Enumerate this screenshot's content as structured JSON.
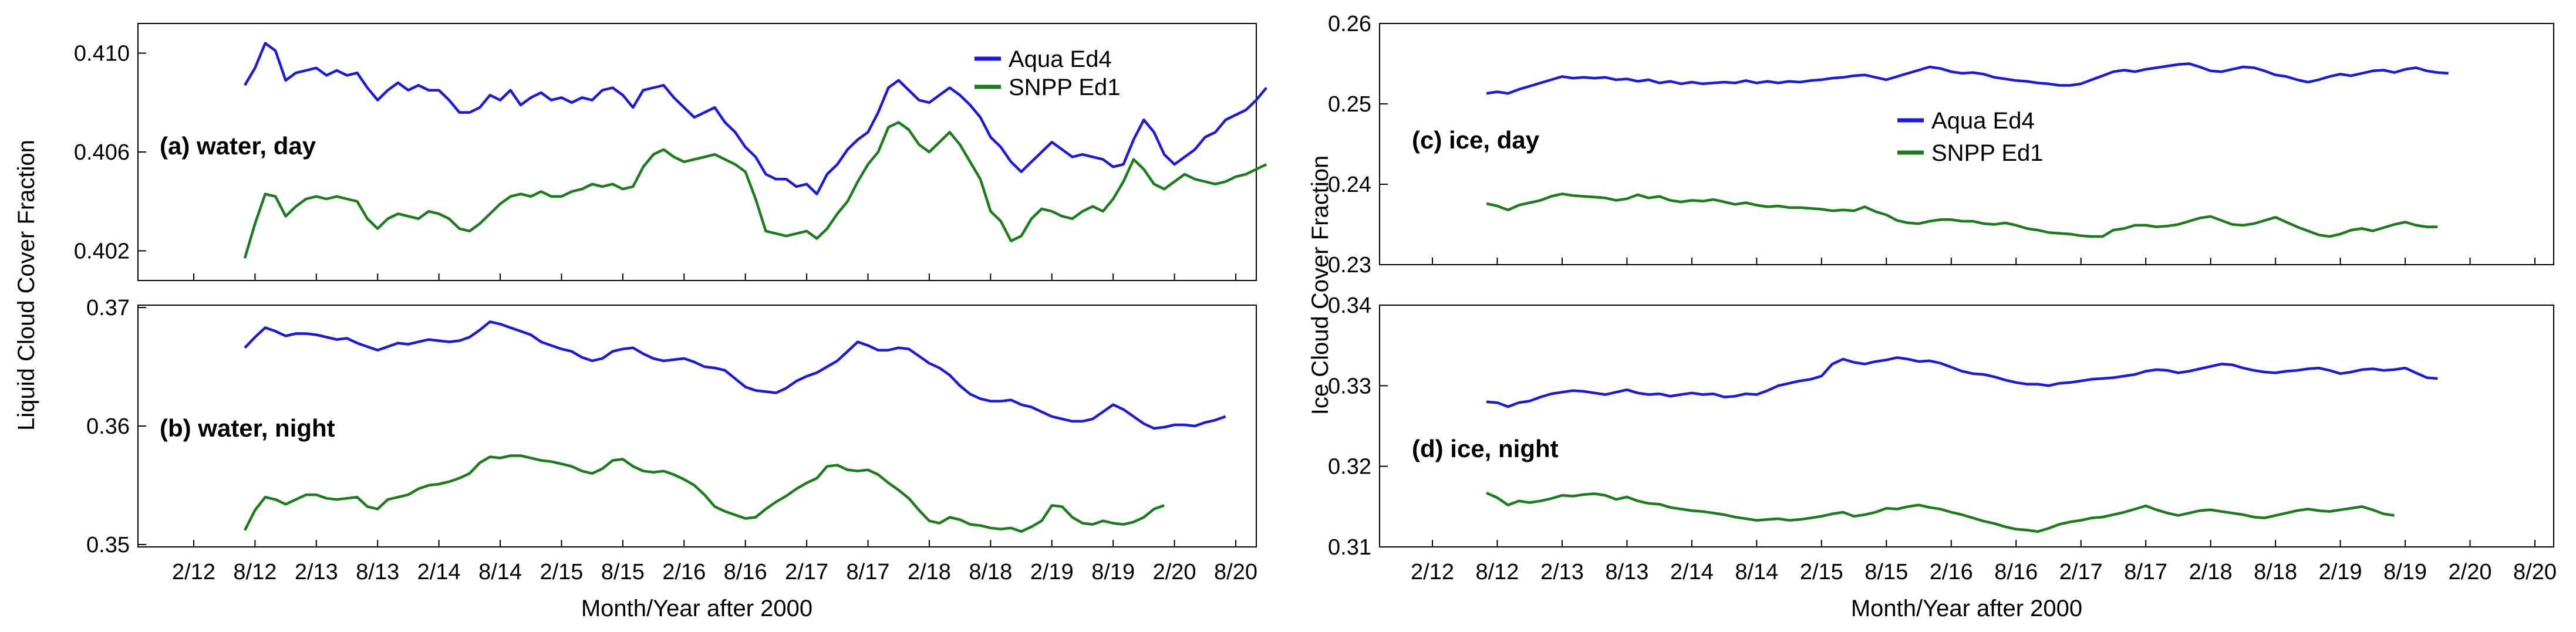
{
  "figure": {
    "left_ylabel": "Liquid Cloud Cover Fraction",
    "right_ylabel": "Ice Cloud Cover Fraction",
    "left_xlabel": "Month/Year after 2000",
    "right_xlabel": "Month/Year after 2000"
  },
  "legend": {
    "series_a": "Aqua Ed4",
    "series_b": "SNPP Ed1",
    "color_a": "#1a1adc",
    "color_b": "#1a7d1a"
  },
  "chart_data": [
    {
      "type": "line",
      "id": "a",
      "panel_label": "(a) water, day",
      "xlabel": "",
      "ylabel": "Liquid Cloud Cover Fraction",
      "x_ticks": [
        "2/12",
        "8/12",
        "2/13",
        "8/13",
        "2/14",
        "8/14",
        "2/15",
        "8/15",
        "2/16",
        "8/16",
        "2/17",
        "8/17",
        "2/18",
        "8/18",
        "2/19",
        "8/19",
        "2/20",
        "8/20"
      ],
      "y_ticks": [
        0.402,
        0.406,
        0.41
      ],
      "ylim": [
        0.4008,
        0.4112
      ],
      "x_range": [
        "2/12",
        "8/20"
      ],
      "legend": "top-right",
      "series": [
        {
          "name": "Aqua Ed4",
          "color": "#1a1adc",
          "x_start": "7/12",
          "values": [
            0.4087,
            0.4094,
            0.4104,
            0.4101,
            0.4089,
            0.4092,
            0.4093,
            0.4094,
            0.4091,
            0.4093,
            0.4091,
            0.4092,
            0.4086,
            0.4081,
            0.4085,
            0.4088,
            0.4085,
            0.4087,
            0.4085,
            0.4085,
            0.4081,
            0.4076,
            0.4076,
            0.4078,
            0.4083,
            0.4081,
            0.4085,
            0.4079,
            0.4082,
            0.4084,
            0.4081,
            0.4082,
            0.408,
            0.4082,
            0.4081,
            0.4085,
            0.4086,
            0.4083,
            0.4078,
            0.4085,
            0.4086,
            0.4087,
            0.4082,
            0.4078,
            0.4074,
            0.4076,
            0.4078,
            0.4072,
            0.4068,
            0.4062,
            0.4058,
            0.4051,
            0.4049,
            0.4049,
            0.4046,
            0.4047,
            0.4043,
            0.4051,
            0.4055,
            0.4061,
            0.4065,
            0.4068,
            0.4076,
            0.4086,
            0.4089,
            0.4085,
            0.4081,
            0.408,
            0.4083,
            0.4086,
            0.4083,
            0.4079,
            0.4074,
            0.4066,
            0.4062,
            0.4056,
            0.4052,
            0.4056,
            0.406,
            0.4064,
            0.4061,
            0.4058,
            0.4059,
            0.4058,
            0.4057,
            0.4054,
            0.4055,
            0.4065,
            0.4073,
            0.4068,
            0.4059,
            0.4055,
            0.4058,
            0.4061,
            0.4066,
            0.4068,
            0.4073,
            0.4075,
            0.4077,
            0.4081,
            0.4086
          ]
        },
        {
          "name": "SNPP Ed1",
          "color": "#1a7d1a",
          "x_start": "7/12",
          "values": [
            0.4017,
            0.4031,
            0.4043,
            0.4042,
            0.4034,
            0.4038,
            0.4041,
            0.4042,
            0.4041,
            0.4042,
            0.4041,
            0.404,
            0.4033,
            0.4029,
            0.4033,
            0.4035,
            0.4034,
            0.4033,
            0.4036,
            0.4035,
            0.4033,
            0.4029,
            0.4028,
            0.4031,
            0.4035,
            0.4039,
            0.4042,
            0.4043,
            0.4042,
            0.4044,
            0.4042,
            0.4042,
            0.4044,
            0.4045,
            0.4047,
            0.4046,
            0.4047,
            0.4045,
            0.4046,
            0.4054,
            0.4059,
            0.4061,
            0.4058,
            0.4056,
            0.4057,
            0.4058,
            0.4059,
            0.4057,
            0.4055,
            0.4052,
            0.4041,
            0.4028,
            0.4027,
            0.4026,
            0.4027,
            0.4028,
            0.4025,
            0.4029,
            0.4035,
            0.404,
            0.4048,
            0.4055,
            0.406,
            0.407,
            0.4072,
            0.4069,
            0.4063,
            0.406,
            0.4064,
            0.4068,
            0.4063,
            0.4056,
            0.4049,
            0.4036,
            0.4032,
            0.4024,
            0.4026,
            0.4033,
            0.4037,
            0.4036,
            0.4034,
            0.4033,
            0.4036,
            0.4038,
            0.4036,
            0.4041,
            0.4048,
            0.4057,
            0.4053,
            0.4047,
            0.4045,
            0.4048,
            0.4051,
            0.4049,
            0.4048,
            0.4047,
            0.4048,
            0.405,
            0.4051,
            0.4053,
            0.4055
          ]
        }
      ]
    },
    {
      "type": "line",
      "id": "b",
      "panel_label": "(b) water, night",
      "xlabel": "Month/Year after 2000",
      "ylabel": "Liquid Cloud Cover Fraction",
      "x_ticks": [
        "2/12",
        "8/12",
        "2/13",
        "8/13",
        "2/14",
        "8/14",
        "2/15",
        "8/15",
        "2/16",
        "8/16",
        "2/17",
        "8/17",
        "2/18",
        "8/18",
        "2/19",
        "8/19",
        "2/20",
        "8/20"
      ],
      "y_ticks": [
        0.35,
        0.36,
        0.37
      ],
      "ylim": [
        0.3498,
        0.3702
      ],
      "x_range": [
        "2/12",
        "8/20"
      ],
      "series": [
        {
          "name": "Aqua Ed4",
          "color": "#1a1adc",
          "x_start": "7/12",
          "values": [
            0.3666,
            0.3675,
            0.3683,
            0.368,
            0.3676,
            0.3678,
            0.3678,
            0.3677,
            0.3675,
            0.3673,
            0.3674,
            0.367,
            0.3667,
            0.3664,
            0.3667,
            0.367,
            0.3669,
            0.3671,
            0.3673,
            0.3672,
            0.3671,
            0.3672,
            0.3675,
            0.3681,
            0.3688,
            0.3686,
            0.3683,
            0.368,
            0.3677,
            0.3671,
            0.3668,
            0.3665,
            0.3663,
            0.3658,
            0.3655,
            0.3657,
            0.3663,
            0.3665,
            0.3666,
            0.3661,
            0.3657,
            0.3655,
            0.3656,
            0.3657,
            0.3654,
            0.365,
            0.3649,
            0.3647,
            0.364,
            0.3633,
            0.363,
            0.3629,
            0.3628,
            0.3632,
            0.3638,
            0.3642,
            0.3645,
            0.365,
            0.3655,
            0.3663,
            0.3671,
            0.3668,
            0.3664,
            0.3664,
            0.3666,
            0.3665,
            0.3659,
            0.3653,
            0.3649,
            0.3643,
            0.3634,
            0.3627,
            0.3623,
            0.3621,
            0.3621,
            0.3622,
            0.3618,
            0.3616,
            0.3612,
            0.3608,
            0.3606,
            0.3604,
            0.3604,
            0.3606,
            0.3612,
            0.3618,
            0.3614,
            0.3608,
            0.3602,
            0.3598,
            0.3599,
            0.3601,
            0.3601,
            0.36,
            0.3603,
            0.3605,
            0.3608
          ]
        },
        {
          "name": "SNPP Ed1",
          "color": "#1a7d1a",
          "x_start": "7/12",
          "values": [
            0.3512,
            0.3529,
            0.354,
            0.3538,
            0.3534,
            0.3538,
            0.3542,
            0.3542,
            0.3539,
            0.3538,
            0.3539,
            0.354,
            0.3532,
            0.353,
            0.3538,
            0.354,
            0.3542,
            0.3547,
            0.355,
            0.3551,
            0.3553,
            0.3556,
            0.356,
            0.3569,
            0.3574,
            0.3573,
            0.3575,
            0.3575,
            0.3573,
            0.3571,
            0.357,
            0.3568,
            0.3566,
            0.3562,
            0.356,
            0.3564,
            0.3571,
            0.3572,
            0.3566,
            0.3562,
            0.3561,
            0.3562,
            0.3559,
            0.3555,
            0.355,
            0.3542,
            0.3532,
            0.3528,
            0.3525,
            0.3522,
            0.3523,
            0.353,
            0.3536,
            0.3541,
            0.3547,
            0.3552,
            0.3556,
            0.3566,
            0.3567,
            0.3563,
            0.3562,
            0.3563,
            0.3559,
            0.3552,
            0.3546,
            0.3539,
            0.3529,
            0.352,
            0.3518,
            0.3523,
            0.3521,
            0.3517,
            0.3516,
            0.3514,
            0.3513,
            0.3514,
            0.3511,
            0.3515,
            0.352,
            0.3533,
            0.3532,
            0.3523,
            0.3518,
            0.3517,
            0.352,
            0.3518,
            0.3517,
            0.3519,
            0.3523,
            0.353,
            0.3533
          ]
        }
      ]
    },
    {
      "type": "line",
      "id": "c",
      "panel_label": "(c) ice, day",
      "xlabel": "",
      "ylabel": "Ice Cloud Cover Fraction",
      "x_ticks": [
        "2/12",
        "8/12",
        "2/13",
        "8/13",
        "2/14",
        "8/14",
        "2/15",
        "8/15",
        "2/16",
        "8/16",
        "2/17",
        "8/17",
        "2/18",
        "8/18",
        "2/19",
        "8/19",
        "2/20",
        "8/20"
      ],
      "y_ticks": [
        0.23,
        0.24,
        0.25,
        0.26
      ],
      "ylim": [
        0.23,
        0.26
      ],
      "x_range": [
        "2/12",
        "8/20"
      ],
      "legend": "center",
      "series": [
        {
          "name": "Aqua Ed4",
          "color": "#1a1adc",
          "x_start": "7/12",
          "values": [
            0.2513,
            0.2515,
            0.2513,
            0.2518,
            0.2522,
            0.2526,
            0.253,
            0.2534,
            0.2532,
            0.2533,
            0.2532,
            0.2533,
            0.253,
            0.2531,
            0.2528,
            0.253,
            0.2526,
            0.2528,
            0.2525,
            0.2527,
            0.2525,
            0.2526,
            0.2527,
            0.2526,
            0.2529,
            0.2526,
            0.2528,
            0.2526,
            0.2528,
            0.2527,
            0.2529,
            0.253,
            0.2532,
            0.2533,
            0.2535,
            0.2536,
            0.2533,
            0.253,
            0.2534,
            0.2538,
            0.2542,
            0.2546,
            0.2544,
            0.254,
            0.2538,
            0.2539,
            0.2537,
            0.2533,
            0.2531,
            0.2529,
            0.2528,
            0.2526,
            0.2525,
            0.2523,
            0.2523,
            0.2525,
            0.253,
            0.2535,
            0.254,
            0.2542,
            0.254,
            0.2543,
            0.2545,
            0.2547,
            0.2549,
            0.255,
            0.2546,
            0.2541,
            0.254,
            0.2543,
            0.2546,
            0.2545,
            0.2541,
            0.2536,
            0.2534,
            0.253,
            0.2527,
            0.253,
            0.2534,
            0.2537,
            0.2535,
            0.2538,
            0.2541,
            0.2542,
            0.2539,
            0.2543,
            0.2545,
            0.2541,
            0.2539,
            0.2538
          ]
        },
        {
          "name": "SNPP Ed1",
          "color": "#1a7d1a",
          "x_start": "7/12",
          "values": [
            0.2376,
            0.2373,
            0.2368,
            0.2374,
            0.2377,
            0.238,
            0.2385,
            0.2388,
            0.2386,
            0.2385,
            0.2384,
            0.2383,
            0.238,
            0.2382,
            0.2387,
            0.2383,
            0.2385,
            0.238,
            0.2378,
            0.238,
            0.2379,
            0.2381,
            0.2378,
            0.2375,
            0.2377,
            0.2374,
            0.2372,
            0.2373,
            0.2371,
            0.2371,
            0.237,
            0.2369,
            0.2367,
            0.2368,
            0.2367,
            0.2372,
            0.2366,
            0.2362,
            0.2355,
            0.2352,
            0.2351,
            0.2354,
            0.2356,
            0.2356,
            0.2354,
            0.2354,
            0.2351,
            0.235,
            0.2352,
            0.2349,
            0.2345,
            0.2343,
            0.234,
            0.2339,
            0.2338,
            0.2336,
            0.2335,
            0.2335,
            0.2343,
            0.2345,
            0.2349,
            0.2349,
            0.2347,
            0.2348,
            0.235,
            0.2354,
            0.2358,
            0.236,
            0.2355,
            0.235,
            0.2349,
            0.2351,
            0.2355,
            0.2359,
            0.2353,
            0.2347,
            0.2342,
            0.2337,
            0.2335,
            0.2338,
            0.2343,
            0.2345,
            0.2342,
            0.2346,
            0.235,
            0.2353,
            0.2349,
            0.2347,
            0.2347
          ]
        }
      ]
    },
    {
      "type": "line",
      "id": "d",
      "panel_label": "(d) ice, night",
      "xlabel": "Month/Year after 2000",
      "ylabel": "Ice Cloud Cover Fraction",
      "x_ticks": [
        "2/12",
        "8/12",
        "2/13",
        "8/13",
        "2/14",
        "8/14",
        "2/15",
        "8/15",
        "2/16",
        "8/16",
        "2/17",
        "8/17",
        "2/18",
        "8/18",
        "2/19",
        "8/19",
        "2/20",
        "8/20"
      ],
      "y_ticks": [
        0.31,
        0.32,
        0.33,
        0.34
      ],
      "ylim": [
        0.31,
        0.34
      ],
      "x_range": [
        "2/12",
        "8/20"
      ],
      "series": [
        {
          "name": "Aqua Ed4",
          "color": "#1a1adc",
          "x_start": "7/12",
          "values": [
            0.328,
            0.3279,
            0.3274,
            0.3279,
            0.3281,
            0.3286,
            0.329,
            0.3292,
            0.3294,
            0.3293,
            0.3291,
            0.3289,
            0.3292,
            0.3295,
            0.3291,
            0.3289,
            0.329,
            0.3287,
            0.3289,
            0.3291,
            0.3289,
            0.329,
            0.3286,
            0.3287,
            0.329,
            0.3289,
            0.3294,
            0.33,
            0.3303,
            0.3306,
            0.3308,
            0.3312,
            0.3327,
            0.3333,
            0.3329,
            0.3327,
            0.333,
            0.3332,
            0.3335,
            0.3333,
            0.333,
            0.3331,
            0.3328,
            0.3323,
            0.3318,
            0.3315,
            0.3314,
            0.3311,
            0.3307,
            0.3304,
            0.3302,
            0.3302,
            0.33,
            0.3303,
            0.3304,
            0.3306,
            0.3308,
            0.3309,
            0.331,
            0.3312,
            0.3314,
            0.3318,
            0.332,
            0.3319,
            0.3316,
            0.3318,
            0.3321,
            0.3324,
            0.3327,
            0.3326,
            0.3322,
            0.3319,
            0.3317,
            0.3316,
            0.3318,
            0.3319,
            0.3321,
            0.3322,
            0.3319,
            0.3315,
            0.3317,
            0.332,
            0.3321,
            0.3319,
            0.332,
            0.3322,
            0.3316,
            0.331,
            0.3309
          ]
        },
        {
          "name": "SNPP Ed1",
          "color": "#1a7d1a",
          "x_start": "7/12",
          "values": [
            0.3167,
            0.3161,
            0.3152,
            0.3157,
            0.3155,
            0.3157,
            0.316,
            0.3164,
            0.3163,
            0.3165,
            0.3166,
            0.3164,
            0.3159,
            0.3162,
            0.3157,
            0.3154,
            0.3153,
            0.3149,
            0.3147,
            0.3145,
            0.3144,
            0.3142,
            0.314,
            0.3137,
            0.3135,
            0.3133,
            0.3134,
            0.3135,
            0.3133,
            0.3134,
            0.3136,
            0.3138,
            0.3141,
            0.3143,
            0.3138,
            0.314,
            0.3143,
            0.3148,
            0.3147,
            0.315,
            0.3152,
            0.3149,
            0.3147,
            0.3143,
            0.314,
            0.3136,
            0.3132,
            0.3129,
            0.3125,
            0.3122,
            0.3121,
            0.3119,
            0.3123,
            0.3128,
            0.3131,
            0.3133,
            0.3136,
            0.3137,
            0.314,
            0.3143,
            0.3147,
            0.3151,
            0.3146,
            0.3142,
            0.3139,
            0.3142,
            0.3145,
            0.3146,
            0.3144,
            0.3142,
            0.314,
            0.3137,
            0.3136,
            0.3139,
            0.3142,
            0.3145,
            0.3147,
            0.3145,
            0.3144,
            0.3146,
            0.3148,
            0.315,
            0.3146,
            0.3141,
            0.3139
          ]
        }
      ]
    }
  ]
}
